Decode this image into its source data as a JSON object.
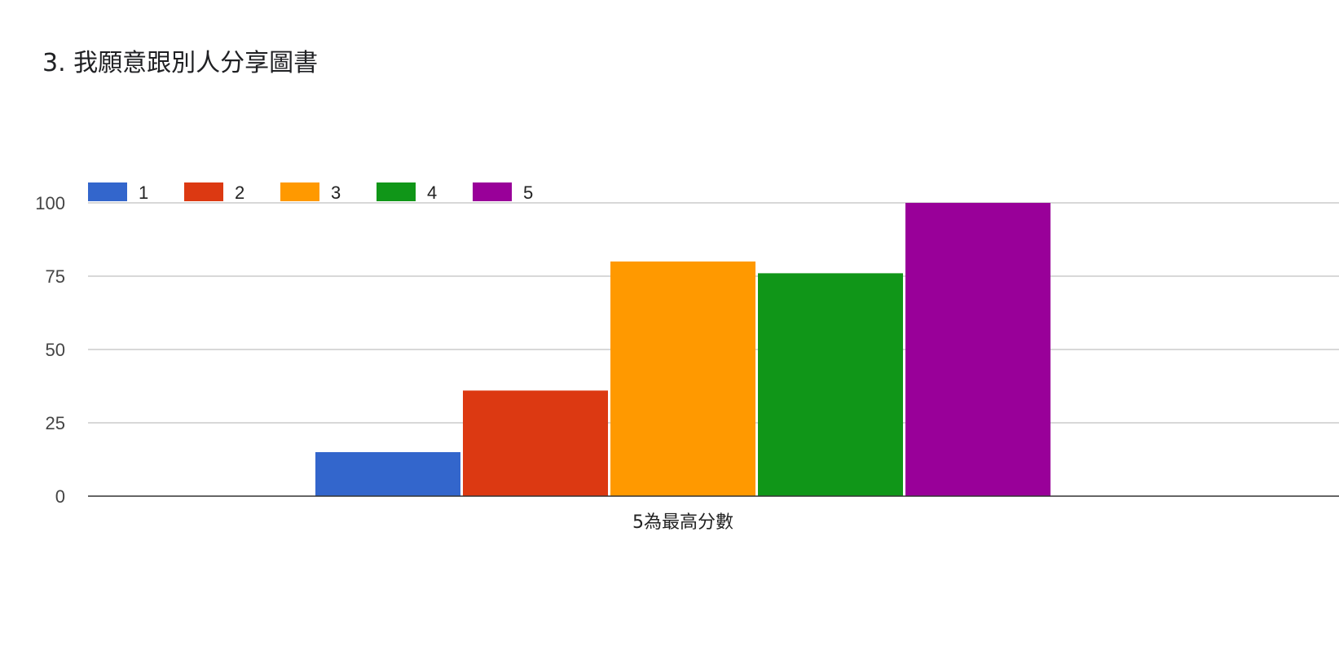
{
  "question": {
    "title": "3. 我願意跟別人分享圖書"
  },
  "chart_data": {
    "type": "bar",
    "categories": [
      "5為最高分數"
    ],
    "series": [
      {
        "name": "1",
        "values": [
          15
        ],
        "color": "#3366cc"
      },
      {
        "name": "2",
        "values": [
          36
        ],
        "color": "#dc3912"
      },
      {
        "name": "3",
        "values": [
          80
        ],
        "color": "#ff9900"
      },
      {
        "name": "4",
        "values": [
          76
        ],
        "color": "#109618"
      },
      {
        "name": "5",
        "values": [
          100
        ],
        "color": "#990099"
      }
    ],
    "ylim": [
      0,
      100
    ],
    "yticks": [
      "0",
      "25",
      "50",
      "75",
      "100"
    ],
    "ytick_values": [
      0,
      25,
      50,
      75,
      100
    ],
    "grid": true,
    "legend_position": "top-left"
  }
}
